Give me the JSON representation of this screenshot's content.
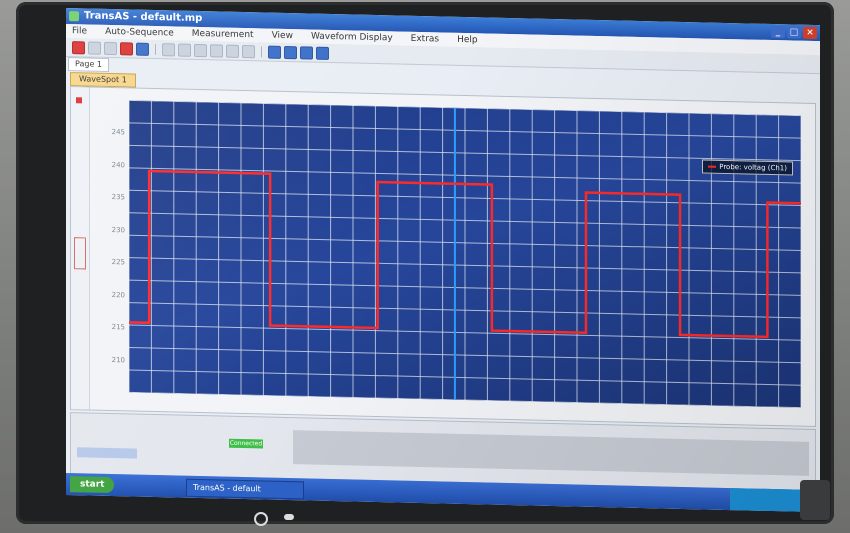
{
  "window": {
    "title": "TransAS - default.mp"
  },
  "menu": [
    "File",
    "Auto-Sequence",
    "Measurement",
    "View",
    "Waveform Display",
    "Extras",
    "Help"
  ],
  "page_tab": "Page 1",
  "wave_tab": "WaveSpot 1",
  "legend": {
    "label": "Probe: voltag (Ch1)"
  },
  "colors": {
    "signal": "#ff2a2a",
    "cursor": "#2aa0ff",
    "grid": "#dfe6f3",
    "plot_bg": "#23408f"
  },
  "plot": {
    "y_tick_labels": [
      "210",
      "215",
      "220",
      "225",
      "230",
      "235",
      "240",
      "245"
    ]
  },
  "chart_data": {
    "type": "line",
    "title": "",
    "xlabel": "",
    "ylabel": "",
    "series": [
      {
        "name": "voltag (Ch1)",
        "x": [
          0.0,
          0.03,
          0.03,
          0.21,
          0.21,
          0.37,
          0.37,
          0.54,
          0.54,
          0.68,
          0.68,
          0.82,
          0.82,
          0.95,
          0.95,
          1.0
        ],
        "y": [
          212,
          212,
          238,
          238,
          212,
          212,
          237,
          237,
          212,
          212,
          236,
          236,
          212,
          212,
          235,
          235
        ]
      }
    ],
    "cursor_x": 0.485,
    "xlim": [
      0,
      1
    ],
    "ylim": [
      200,
      250
    ],
    "grid": true,
    "legend": "top-right"
  },
  "bottom": {
    "status": "Connected"
  },
  "taskbar": {
    "start_label": "start",
    "task_label": "TransAS - default"
  }
}
